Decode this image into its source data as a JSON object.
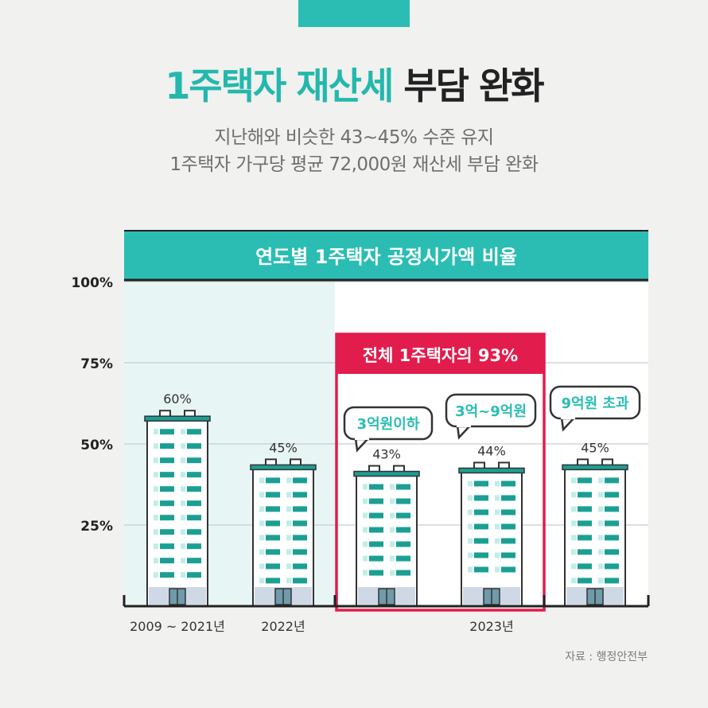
{
  "header": {
    "title_highlight": "1주택자 재산세",
    "title_rest": "부담 완화",
    "subtitle_line1": "지난해와 비슷한 43~45% 수준 유지",
    "subtitle_line2": "1주택자 가구당 평균 72,000원 재산세 부담 완화"
  },
  "chart_data": {
    "type": "bar",
    "title": "연도별 1주택자 공정시가액 비율",
    "categories": [
      "2009 ~ 2021년",
      "2022년",
      "3억원이하",
      "3억~9억원",
      "9억원 초과"
    ],
    "values": [
      60,
      45,
      43,
      44,
      45
    ],
    "data_labels": [
      "60%",
      "45%",
      "43%",
      "44%",
      "45%"
    ],
    "ylim": [
      0,
      100
    ],
    "yticks": [
      25,
      50,
      75,
      100
    ],
    "ytick_labels": [
      "25%",
      "50%",
      "75%",
      "100%"
    ],
    "x_axis_labels": [
      "2009 ~ 2021년",
      "2022년",
      "2023년"
    ],
    "bubbles": [
      "3억원이하",
      "3억~9억원",
      "9억원 초과"
    ],
    "highlight_box_label": "전체 1주택자의 93%",
    "grid": true,
    "colors": {
      "teal": "#2bbdb3",
      "red": "#e21c4c",
      "history_bg": "#e7f6f4",
      "bar_fill": "#ffffff",
      "stripe_dark": "#1b9f93",
      "stripe_light": "#bfeee8",
      "base": "#cfd9e6",
      "door": "#6f9bab"
    }
  },
  "source_label": "자료 : 행정안전부"
}
